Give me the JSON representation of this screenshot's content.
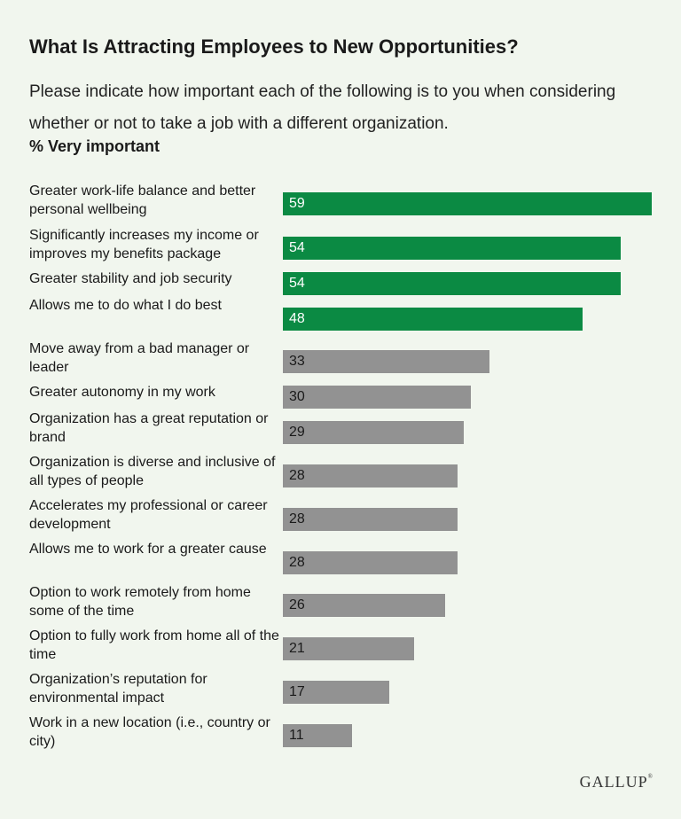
{
  "chart_data": {
    "type": "bar",
    "orientation": "horizontal",
    "title": "What Is Attracting Employees to New Opportunities?",
    "subtitle": "Please indicate how important each of the following is to you when considering whether or not to take a job with a different organization.",
    "measure_label": "% Very important",
    "xlim": [
      0,
      59
    ],
    "grid": false,
    "legend": "none",
    "categories": [
      "Greater work-life balance and better personal wellbeing",
      "Significantly increases my income or improves my benefits package",
      "Greater stability and job security",
      "Allows me to do what I do best",
      "Move away from a bad manager or leader",
      "Greater autonomy in my work",
      "Organization has a great reputation or brand",
      "Organization is diverse and inclusive of all types of people",
      "Accelerates my professional or career development",
      "Allows me to work for a greater cause",
      "Option to work remotely from home some of the time",
      "Option to fully work from home all of the time",
      "Organization’s reputation for environmental impact",
      "Work in a new location (i.e., country or city)"
    ],
    "values": [
      59,
      54,
      54,
      48,
      33,
      30,
      29,
      28,
      28,
      28,
      26,
      21,
      17,
      11
    ],
    "highlight_count": 4,
    "colors": {
      "highlight": "#0b8a43",
      "default": "#929292",
      "highlight_text": "#ffffff",
      "default_text": "#1a1a1a"
    }
  },
  "brand": {
    "name": "GALLUP",
    "mark": "®"
  }
}
